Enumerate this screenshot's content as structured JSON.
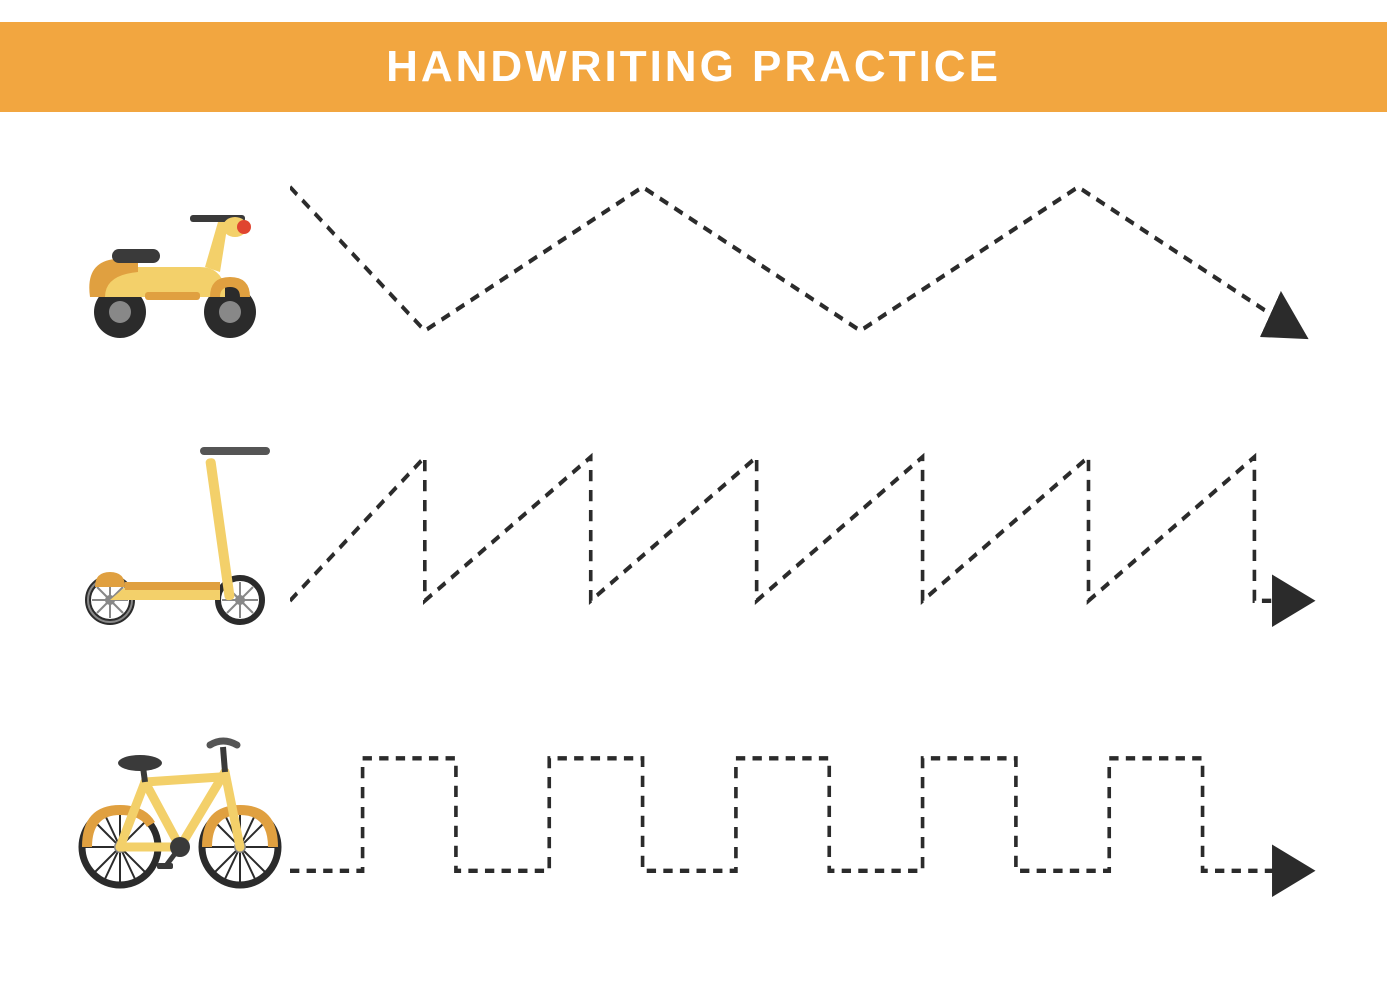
{
  "header": {
    "title": "HANDWRITING PRACTICE",
    "band_color": "#f2a640",
    "title_color": "#ffffff",
    "title_fontsize": 44
  },
  "colors": {
    "background": "#ffffff",
    "vehicle_body": "#f3d06a",
    "vehicle_accent": "#e0a040",
    "vehicle_dark": "#3a3a3a",
    "vehicle_red": "#e04530",
    "tire": "#2b2b2b",
    "tire_hub": "#888888",
    "trace_line": "#2b2b2b",
    "arrow": "#2b2b2b"
  },
  "trace": {
    "stroke_width": 3.5,
    "dash": "9 7",
    "arrow_size": 18
  },
  "rows": [
    {
      "vehicle": "moped",
      "pattern_type": "zigzag",
      "points": [
        [
          0,
          20
        ],
        [
          130,
          135
        ],
        [
          340,
          20
        ],
        [
          550,
          135
        ],
        [
          760,
          20
        ],
        [
          970,
          135
        ]
      ]
    },
    {
      "vehicle": "kick-scooter",
      "pattern_type": "sawtooth",
      "points": [
        [
          0,
          135
        ],
        [
          130,
          20
        ],
        [
          130,
          135
        ],
        [
          290,
          20
        ],
        [
          290,
          135
        ],
        [
          450,
          20
        ],
        [
          450,
          135
        ],
        [
          610,
          20
        ],
        [
          610,
          135
        ],
        [
          770,
          20
        ],
        [
          770,
          135
        ],
        [
          930,
          20
        ],
        [
          930,
          135
        ],
        [
          975,
          135
        ]
      ]
    },
    {
      "vehicle": "bicycle",
      "pattern_type": "square-wave",
      "points": [
        [
          0,
          135
        ],
        [
          70,
          135
        ],
        [
          70,
          45
        ],
        [
          160,
          45
        ],
        [
          160,
          135
        ],
        [
          250,
          135
        ],
        [
          250,
          45
        ],
        [
          340,
          45
        ],
        [
          340,
          135
        ],
        [
          430,
          135
        ],
        [
          430,
          45
        ],
        [
          520,
          45
        ],
        [
          520,
          135
        ],
        [
          610,
          135
        ],
        [
          610,
          45
        ],
        [
          700,
          45
        ],
        [
          700,
          135
        ],
        [
          790,
          135
        ],
        [
          790,
          45
        ],
        [
          880,
          45
        ],
        [
          880,
          135
        ],
        [
          975,
          135
        ]
      ]
    }
  ]
}
